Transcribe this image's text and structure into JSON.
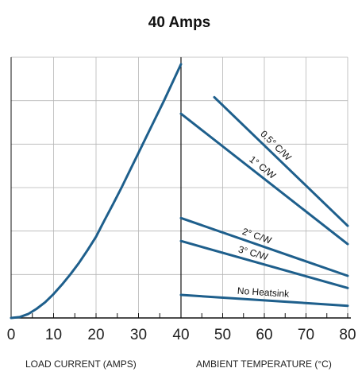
{
  "chart_data": {
    "type": "line",
    "title": "40 Amps",
    "grid": true,
    "panels": [
      {
        "name": "power-dissipation",
        "xlabel": "LOAD CURRENT (AMPS)",
        "xlim": [
          0,
          40
        ],
        "xticks": [
          0,
          10,
          20,
          30,
          40
        ],
        "tick_labels": [
          "0",
          "10",
          "20",
          "30",
          "40"
        ],
        "ylim": [
          0,
          6
        ],
        "series": [
          {
            "x": [
              0,
              2,
              4,
              6,
              8,
              10,
              12,
              14,
              16,
              18,
              20,
              22,
              24,
              26,
              28,
              30,
              32,
              34,
              36,
              38,
              40
            ],
            "values": [
              0.0,
              0.02,
              0.09,
              0.21,
              0.36,
              0.55,
              0.77,
              1.01,
              1.27,
              1.56,
              1.87,
              2.25,
              2.62,
              3.0,
              3.4,
              3.8,
              4.2,
              4.6,
              5.0,
              5.42,
              5.84
            ]
          }
        ]
      },
      {
        "name": "ambient-temperature",
        "xlabel": "AMBIENT TEMPERATURE (°C)",
        "xlim": [
          40,
          80
        ],
        "xticks": [
          40,
          50,
          60,
          70,
          80
        ],
        "tick_labels": [
          "40",
          "50",
          "60",
          "70",
          "80"
        ],
        "ylim": [
          0,
          6
        ],
        "series": [
          {
            "name": "0.5° C/W",
            "x": [
              48,
              80
            ],
            "values": [
              5.08,
              2.12
            ]
          },
          {
            "name": "1° C/W",
            "x": [
              40,
              80
            ],
            "values": [
              4.7,
              1.7
            ]
          },
          {
            "name": "2° C/W",
            "x": [
              40,
              80
            ],
            "values": [
              2.3,
              0.97
            ]
          },
          {
            "name": "3° C/W",
            "x": [
              40,
              80
            ],
            "values": [
              1.77,
              0.69
            ]
          },
          {
            "name": "No Heatsink",
            "x": [
              40,
              80
            ],
            "values": [
              0.53,
              0.28
            ]
          }
        ]
      }
    ],
    "colors": {
      "series": "#1e5f8c",
      "grid": "#b5b5b5",
      "axis": "#111111"
    }
  }
}
